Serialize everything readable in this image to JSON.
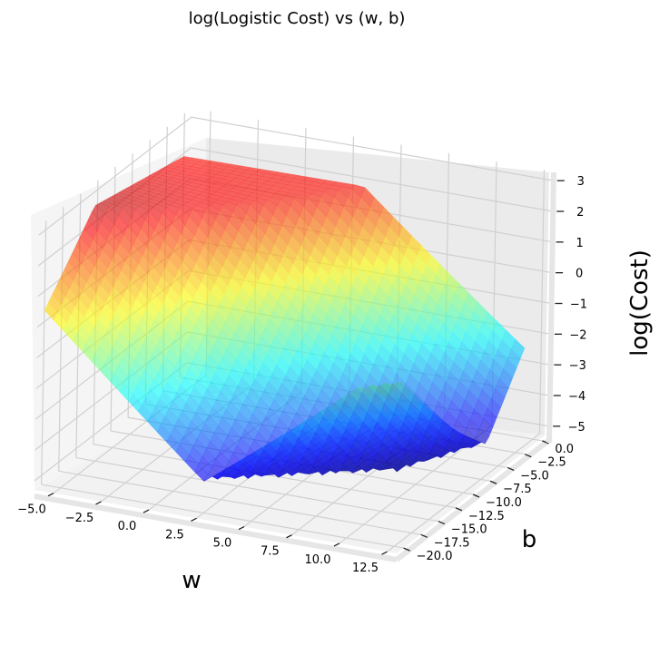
{
  "chart_data": {
    "type": "surface",
    "title": "log(Logistic Cost) vs (w, b)",
    "xlabel": "w",
    "ylabel": "b",
    "zlabel": "log(Cost)",
    "x_ticks": [
      "−5.0",
      "−2.5",
      "0.0",
      "2.5",
      "5.0",
      "7.5",
      "10.0",
      "12.5"
    ],
    "y_ticks": [
      "0.0",
      "−2.5",
      "−5.0",
      "−7.5",
      "−10.0",
      "−12.5",
      "−15.0",
      "−17.5",
      "−20.0"
    ],
    "z_ticks": [
      "3",
      "2",
      "1",
      "0",
      "−1",
      "−2",
      "−3",
      "−4",
      "−5"
    ],
    "xlim": [
      -6,
      13
    ],
    "ylim": [
      -21,
      1
    ],
    "zlim": [
      -5.3,
      3.3
    ],
    "colormap": "jet",
    "surface_alpha": 0.6,
    "grid": true,
    "corner_values": [
      {
        "w": -6,
        "b": 0,
        "log_cost": 1.9
      },
      {
        "w": -6,
        "b": -20,
        "log_cost": 2.9
      },
      {
        "w": 12,
        "b": 0,
        "log_cost": 2.0
      },
      {
        "w": 12,
        "b": -20,
        "log_cost": -0.5
      }
    ],
    "minimum": {
      "w": 9,
      "b": -10,
      "log_cost": -5.0
    }
  }
}
